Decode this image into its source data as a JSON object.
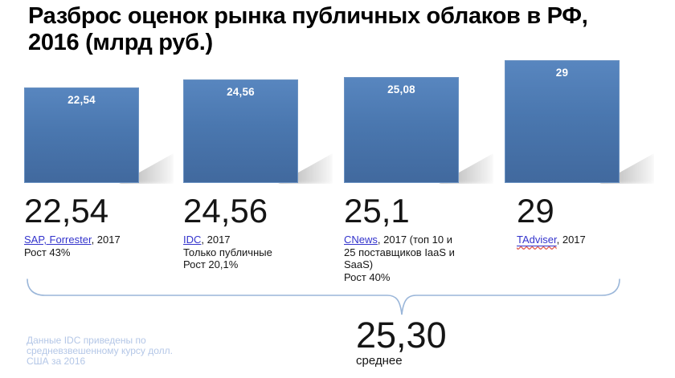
{
  "title": {
    "line1": "Разброс оценок рынка публичных облаков в РФ,",
    "line2": "2016 (млрд руб.)"
  },
  "chart_data": {
    "type": "bar",
    "title": "Разброс оценок рынка публичных облаков в РФ, 2016 (млрд руб.)",
    "categories": [
      "SAP, Forrester (2017)",
      "IDC (2017)",
      "CNews (2017)",
      "TAdviser (2017)"
    ],
    "values": [
      22.54,
      24.56,
      25.08,
      29
    ],
    "data_labels": [
      "22,54",
      "24,56",
      "25,08",
      "29"
    ],
    "ylabel": "млрд руб.",
    "ylim": [
      0,
      29
    ],
    "grid": false,
    "legend": "none",
    "axes_hidden": true,
    "bar_color": "#4a77af",
    "average": 25.3
  },
  "columns": [
    {
      "bar_label": "22,54",
      "big_number": "22,54",
      "source_link": "SAP, Forrester",
      "source_rest": ", 2017",
      "notes": [
        "Рост 43%"
      ]
    },
    {
      "bar_label": "24,56",
      "big_number": "24,56",
      "source_link": "IDC",
      "source_rest": ", 2017",
      "notes": [
        "Только публичные",
        "Рост 20,1%"
      ]
    },
    {
      "bar_label": "25,08",
      "big_number": "25,1",
      "source_link": "CNews",
      "source_rest": ", 2017 (топ 10 и 25 поставщиков IaaS и SaaS)",
      "notes": [
        "Рост 40%"
      ]
    },
    {
      "bar_label": "29",
      "big_number": "29",
      "source_link": "TAdviser",
      "source_rest": ", 2017",
      "notes": []
    }
  ],
  "average": {
    "value": "25,30",
    "caption": "среднее"
  },
  "footnote": {
    "line1": "Данные IDC приведены по",
    "line2": "средневзвешенному курсу долл.",
    "line3": "США за 2016"
  },
  "colors": {
    "bar": "#4a77af",
    "link": "#3333cc",
    "brace": "#9ab6d9",
    "footnote": "#b4c7e7"
  }
}
